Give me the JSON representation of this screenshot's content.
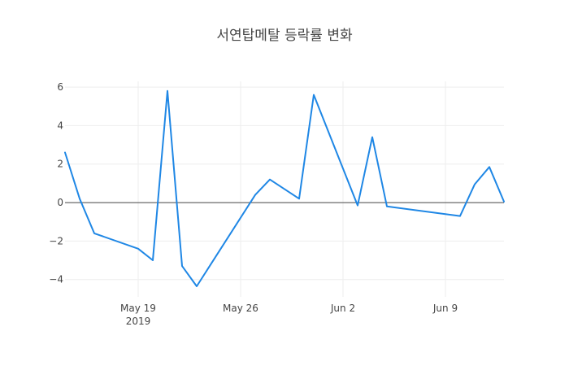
{
  "chart_data": {
    "type": "line",
    "title": "서연탑메탈 등락률 변화",
    "xlabel": "",
    "ylabel": "",
    "x": [
      "2019-05-14",
      "2019-05-15",
      "2019-05-16",
      "2019-05-19",
      "2019-05-20",
      "2019-05-21",
      "2019-05-22",
      "2019-05-23",
      "2019-05-27",
      "2019-05-28",
      "2019-05-30",
      "2019-05-31",
      "2019-06-03",
      "2019-06-04",
      "2019-06-05",
      "2019-06-10",
      "2019-06-11",
      "2019-06-12",
      "2019-06-13"
    ],
    "series": [
      {
        "name": "",
        "color": "#1f87e5",
        "values": [
          2.6,
          0.2,
          -1.6,
          -2.4,
          -3.0,
          5.8,
          -3.3,
          -4.35,
          0.4,
          1.2,
          0.2,
          5.6,
          -0.15,
          3.4,
          -0.2,
          -0.7,
          0.95,
          1.85,
          0.05
        ]
      }
    ],
    "xlim": [
      "2019-05-14",
      "2019-06-13"
    ],
    "ylim": [
      -4.9,
      6.3
    ],
    "x_ticks": [
      {
        "date": "2019-05-19",
        "label": "May 19",
        "sublabel": "2019"
      },
      {
        "date": "2019-05-26",
        "label": "May 26",
        "sublabel": ""
      },
      {
        "date": "2019-06-02",
        "label": "Jun 2",
        "sublabel": ""
      },
      {
        "date": "2019-06-09",
        "label": "Jun 9",
        "sublabel": ""
      }
    ],
    "y_ticks": [
      {
        "value": 6,
        "label": "6"
      },
      {
        "value": 4,
        "label": "4"
      },
      {
        "value": 2,
        "label": "2"
      },
      {
        "value": 0,
        "label": "0"
      },
      {
        "value": -2,
        "label": "−2"
      },
      {
        "value": -4,
        "label": "−4"
      }
    ],
    "grid": true,
    "zero_line": true
  }
}
